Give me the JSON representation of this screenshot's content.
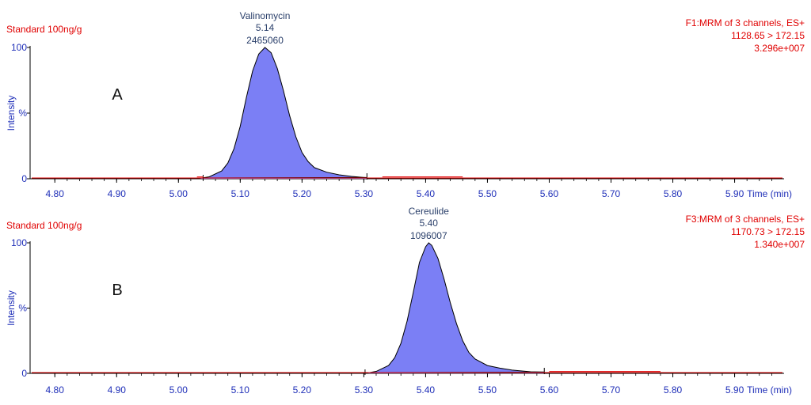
{
  "chart_data": [
    {
      "type": "area",
      "panel_label": "A",
      "sample_label": "Standard 100ng/g",
      "channel": {
        "line1": "F1:MRM of 3 channels, ES+",
        "line2": "1128.65 > 172.15",
        "line3": "3.296e+007"
      },
      "peak": {
        "name": "Valinomycin",
        "rt": "5.14",
        "area": "2465060",
        "apex_x": 5.14,
        "start": 5.04,
        "end": 5.305
      },
      "ylabel": "Intensity",
      "y_ticks": [
        "0",
        "%",
        "100"
      ],
      "y_tick_values": [
        0,
        50,
        100
      ],
      "xlabel": "Time (min)",
      "x_ticks": [
        "4.80",
        "4.90",
        "5.00",
        "5.10",
        "5.20",
        "5.30",
        "5.40",
        "5.50",
        "5.60",
        "5.70",
        "5.80",
        "5.90"
      ],
      "x_tick_values": [
        4.8,
        4.9,
        5.0,
        5.1,
        5.2,
        5.3,
        5.4,
        5.5,
        5.6,
        5.7,
        5.8,
        5.9
      ],
      "xlim": [
        4.76,
        5.98
      ],
      "ylim": [
        0,
        100
      ],
      "x": [
        5.03,
        5.05,
        5.07,
        5.08,
        5.09,
        5.1,
        5.11,
        5.12,
        5.13,
        5.14,
        5.15,
        5.16,
        5.17,
        5.18,
        5.19,
        5.2,
        5.21,
        5.22,
        5.24,
        5.26,
        5.28,
        5.3,
        5.305
      ],
      "y": [
        0,
        1.5,
        6,
        12,
        23,
        40,
        62,
        82,
        95,
        100,
        96,
        84,
        67,
        48,
        32,
        20,
        13,
        8.5,
        5,
        3,
        1.8,
        1,
        0.8
      ],
      "baseline_noise": [
        {
          "from": 5.03,
          "to": 5.04,
          "y": 0.8
        },
        {
          "from": 5.33,
          "to": 5.46,
          "y": 0.8
        }
      ]
    },
    {
      "type": "area",
      "panel_label": "B",
      "sample_label": "Standard 100ng/g",
      "channel": {
        "line1": "F3:MRM of 3 channels, ES+",
        "line2": "1170.73 > 172.15",
        "line3": "1.340e+007"
      },
      "peak": {
        "name": "Cereulide",
        "rt": "5.40",
        "area": "1096007",
        "apex_x": 5.405,
        "start": 5.302,
        "end": 5.592
      },
      "ylabel": "Intensity",
      "y_ticks": [
        "0",
        "%",
        "100"
      ],
      "y_tick_values": [
        0,
        50,
        100
      ],
      "xlabel": "Time (min)",
      "x_ticks": [
        "4.80",
        "4.90",
        "5.00",
        "5.10",
        "5.20",
        "5.30",
        "5.40",
        "5.50",
        "5.60",
        "5.70",
        "5.80",
        "5.90"
      ],
      "x_tick_values": [
        4.8,
        4.9,
        5.0,
        5.1,
        5.2,
        5.3,
        5.4,
        5.5,
        5.6,
        5.7,
        5.8,
        5.9
      ],
      "xlim": [
        4.76,
        5.98
      ],
      "ylim": [
        0,
        100
      ],
      "x": [
        5.302,
        5.32,
        5.34,
        5.35,
        5.36,
        5.37,
        5.38,
        5.39,
        5.4,
        5.405,
        5.41,
        5.42,
        5.43,
        5.44,
        5.45,
        5.46,
        5.47,
        5.48,
        5.5,
        5.52,
        5.54,
        5.57,
        5.592
      ],
      "y": [
        0,
        1.5,
        6,
        12,
        23,
        40,
        62,
        85,
        97,
        100,
        98,
        88,
        72,
        54,
        38,
        25,
        16,
        11,
        6,
        4,
        2.5,
        1.2,
        1
      ],
      "baseline_noise": [
        {
          "from": 5.6,
          "to": 5.78,
          "y": 0.8
        }
      ]
    }
  ]
}
